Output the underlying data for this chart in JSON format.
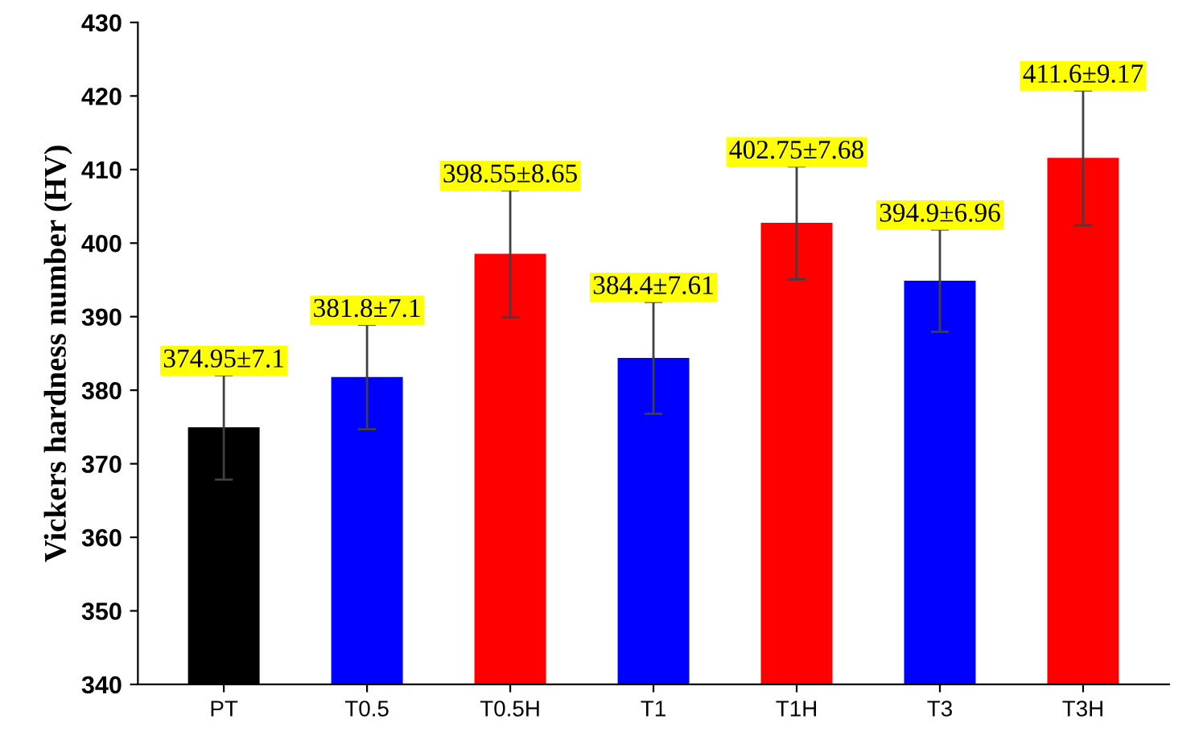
{
  "chart_data": {
    "type": "bar",
    "ylabel": "Vickers hardness number (HV)",
    "categories": [
      "PT",
      "T0.5",
      "T0.5H",
      "T1",
      "T1H",
      "T3",
      "T3H"
    ],
    "values": [
      374.95,
      381.8,
      398.55,
      384.4,
      402.75,
      394.9,
      411.6
    ],
    "errors": [
      7.1,
      7.1,
      8.65,
      7.61,
      7.68,
      6.96,
      9.17
    ],
    "value_labels": [
      "374.95±7.1",
      "381.8±7.1",
      "398.55±8.65",
      "384.4±7.61",
      "402.75±7.68",
      "394.9±6.96",
      "411.6±9.17"
    ],
    "colors": [
      "#000000",
      "#0000ff",
      "#ff0000",
      "#0000ff",
      "#ff0000",
      "#0000ff",
      "#ff0000"
    ],
    "ylim": [
      340,
      430
    ],
    "yticks": [
      340,
      350,
      360,
      370,
      380,
      390,
      400,
      410,
      420,
      430
    ],
    "grid": false
  }
}
